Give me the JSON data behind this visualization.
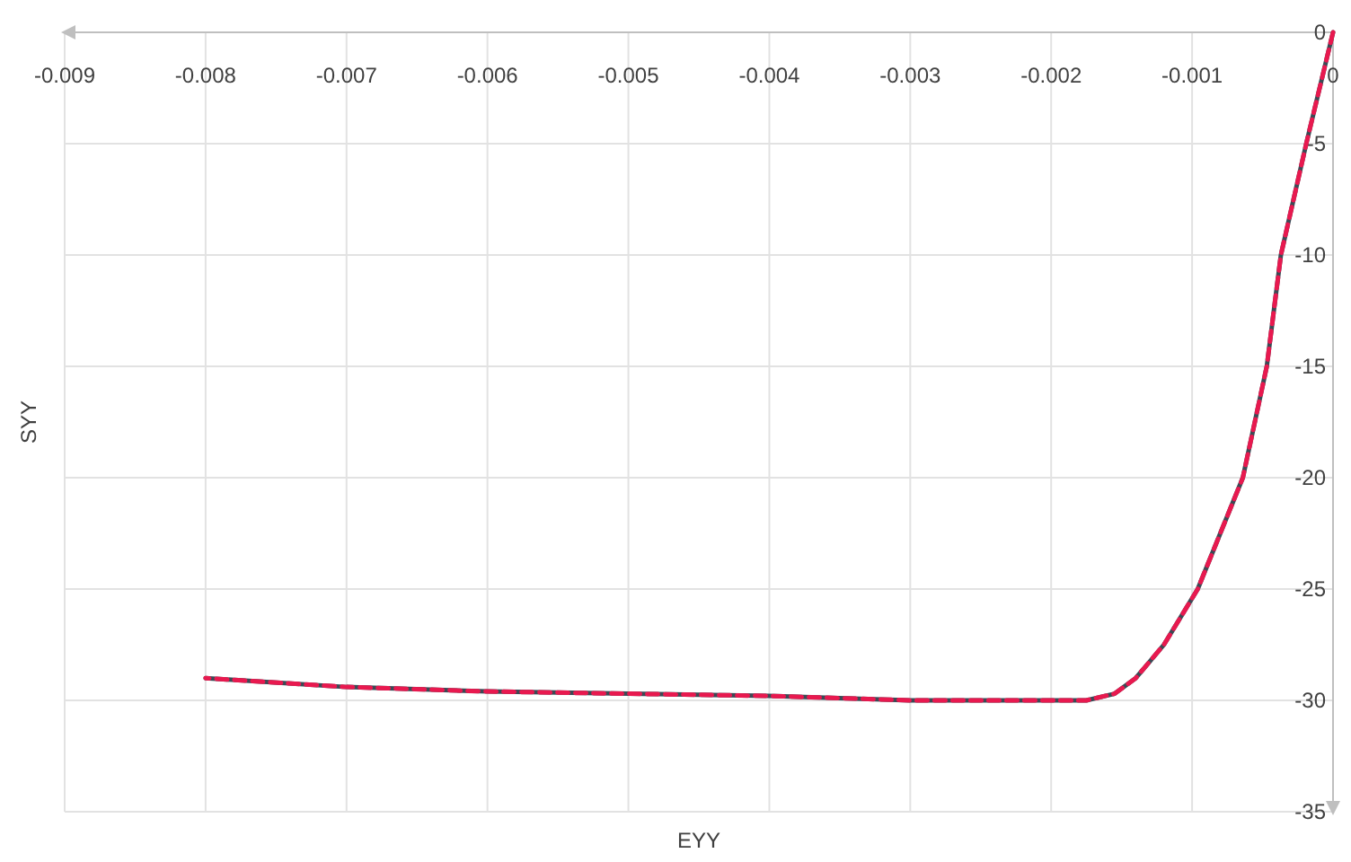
{
  "chart_data": {
    "type": "line",
    "xlabel": "EYY",
    "ylabel": "SYY",
    "xlim": [
      -0.009,
      0
    ],
    "xticks": [
      -0.009,
      -0.008,
      -0.007,
      -0.006,
      -0.005,
      -0.004,
      -0.003,
      -0.002,
      -0.001,
      0
    ],
    "ylim": [
      -35,
      0
    ],
    "yticks": [
      -35,
      -30,
      -25,
      -20,
      -15,
      -10,
      -5,
      0
    ],
    "grid": true,
    "series": [
      {
        "color": "#3c4a55",
        "line_style": "solid",
        "x": [
          0,
          -0.00019,
          -0.00037,
          -0.00047,
          -0.00064,
          -0.00096,
          -0.0012,
          -0.0014,
          -0.00155,
          -0.00175,
          -0.002,
          -0.003,
          -0.004,
          -0.005,
          -0.006,
          -0.007,
          -0.008
        ],
        "values": [
          0,
          -5,
          -10,
          -15,
          -20,
          -25,
          -27.5,
          -29,
          -29.7,
          -30,
          -30,
          -30,
          -29.8,
          -29.7,
          -29.6,
          -29.4,
          -29.0
        ]
      },
      {
        "color": "#e8194f",
        "line_style": "dashed",
        "x": [
          0,
          -0.00019,
          -0.00037,
          -0.00047,
          -0.00064,
          -0.00096,
          -0.0012,
          -0.0014,
          -0.00155,
          -0.00175,
          -0.002,
          -0.003,
          -0.004,
          -0.005,
          -0.006,
          -0.007,
          -0.008
        ],
        "values": [
          0,
          -5,
          -10,
          -15,
          -20,
          -25,
          -27.5,
          -29,
          -29.7,
          -30,
          -30,
          -30,
          -29.8,
          -29.7,
          -29.6,
          -29.4,
          -29.0
        ]
      }
    ]
  }
}
